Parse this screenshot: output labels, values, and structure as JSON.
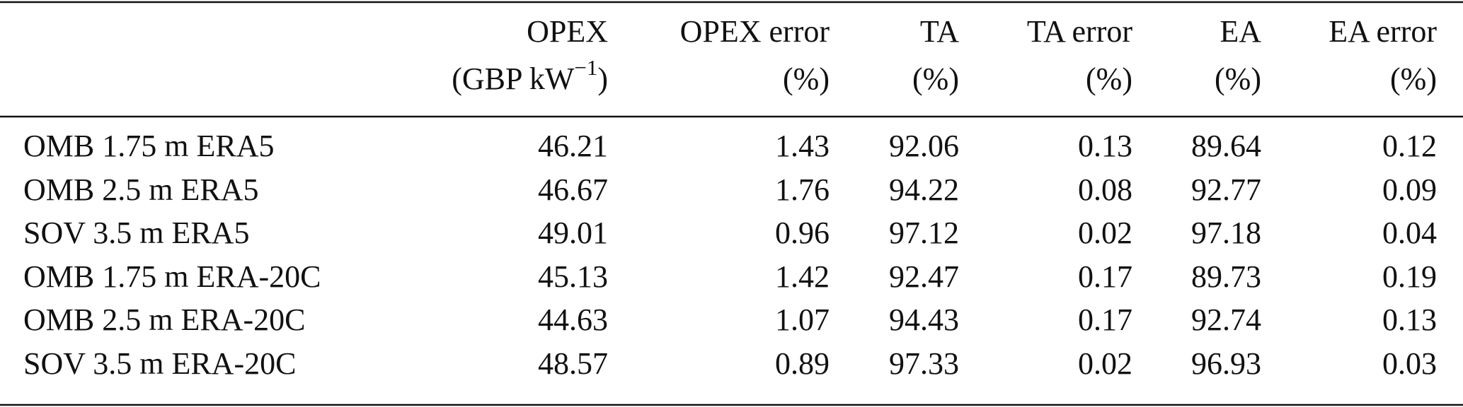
{
  "table": {
    "header": [
      {
        "line1": "OPEX",
        "unit": [
          "(GBP kW",
          "−1",
          ")"
        ]
      },
      {
        "line1": "OPEX error",
        "unit": [
          "(%)"
        ]
      },
      {
        "line1": "TA",
        "unit": [
          "(%)"
        ]
      },
      {
        "line1": "TA error",
        "unit": [
          "(%)"
        ]
      },
      {
        "line1": "EA",
        "unit": [
          "(%)"
        ]
      },
      {
        "line1": "EA error",
        "unit": [
          "(%)"
        ]
      }
    ],
    "rows": [
      [
        "OMB 1.75 m ERA5",
        "46.21",
        "1.43",
        "92.06",
        "0.13",
        "89.64",
        "0.12"
      ],
      [
        "OMB 2.5 m ERA5",
        "46.67",
        "1.76",
        "94.22",
        "0.08",
        "92.77",
        "0.09"
      ],
      [
        "SOV 3.5 m ERA5",
        "49.01",
        "0.96",
        "97.12",
        "0.02",
        "97.18",
        "0.04"
      ],
      [
        "OMB 1.75 m ERA-20C",
        "45.13",
        "1.42",
        "92.47",
        "0.17",
        "89.73",
        "0.19"
      ],
      [
        "OMB 2.5 m ERA-20C",
        "44.63",
        "1.07",
        "94.43",
        "0.17",
        "92.74",
        "0.13"
      ],
      [
        "SOV 3.5 m ERA-20C",
        "48.57",
        "0.89",
        "97.33",
        "0.02",
        "96.93",
        "0.03"
      ]
    ]
  }
}
